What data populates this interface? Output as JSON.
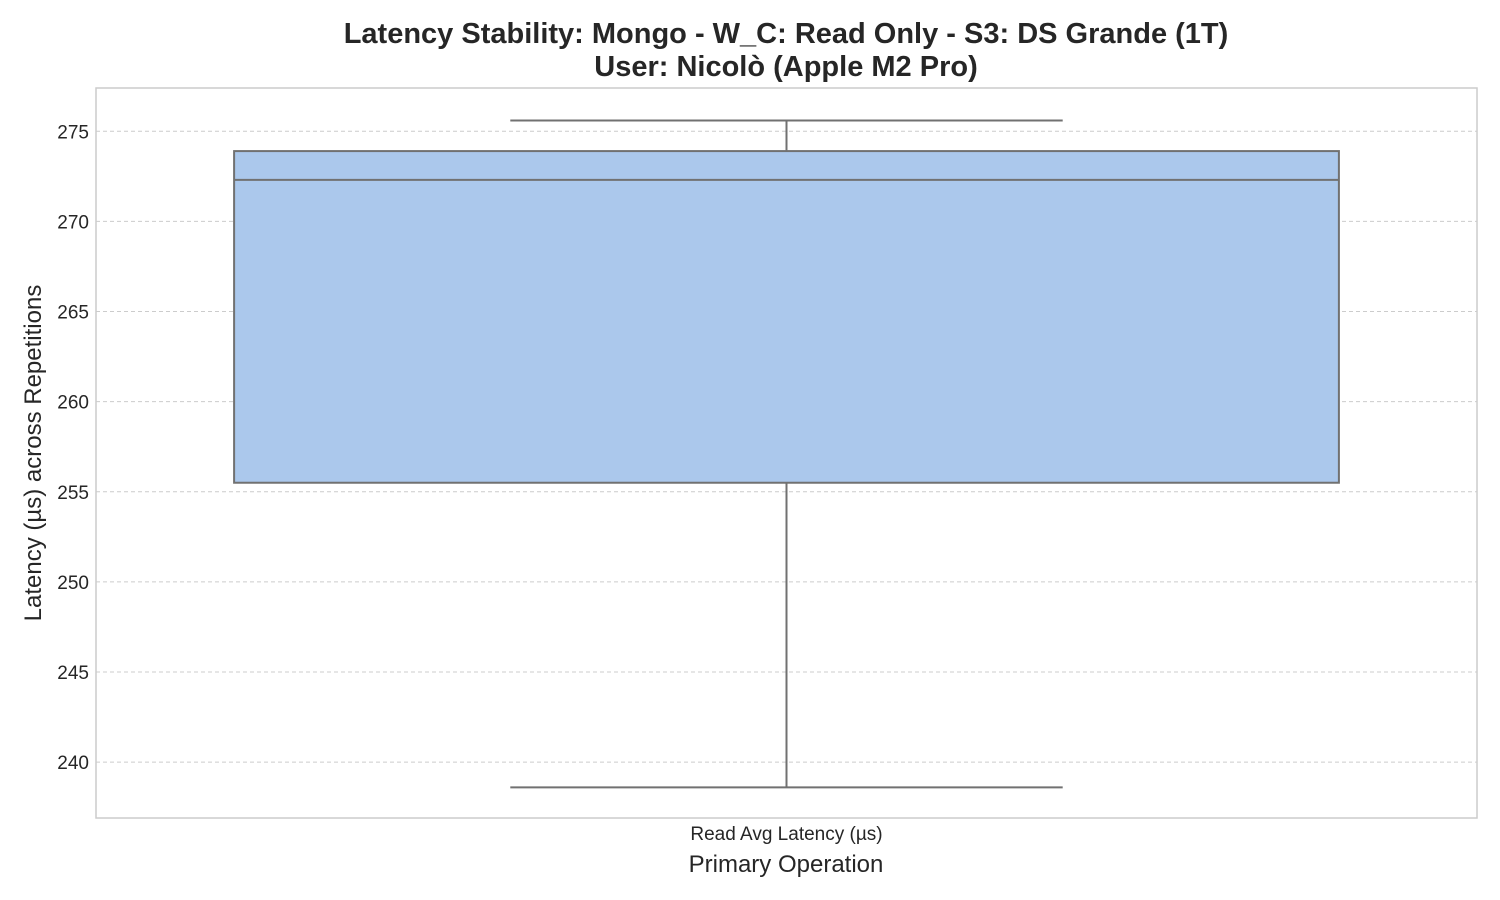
{
  "chart_data": {
    "type": "box",
    "title_lines": [
      "Latency Stability: Mongo - W_C: Read Only - S3: DS Grande (1T)",
      "User: Nicolò (Apple M2 Pro)"
    ],
    "xlabel": "Primary Operation",
    "ylabel": "Latency (µs) across Repetitions",
    "categories": [
      "Read Avg Latency (µs)"
    ],
    "boxes": [
      {
        "category": "Read Avg Latency (µs)",
        "whisker_low": 238.6,
        "q1": 255.5,
        "median": 272.3,
        "q3": 273.9,
        "whisker_high": 275.6
      }
    ],
    "y_ticks": [
      240,
      245,
      250,
      255,
      260,
      265,
      270,
      275
    ],
    "ylim": [
      236.9,
      277.4
    ],
    "grid": true,
    "colors": {
      "box_fill": "#abc8ec",
      "box_edge": "#717171",
      "grid": "#cccccc",
      "frame": "#cccccc"
    }
  }
}
